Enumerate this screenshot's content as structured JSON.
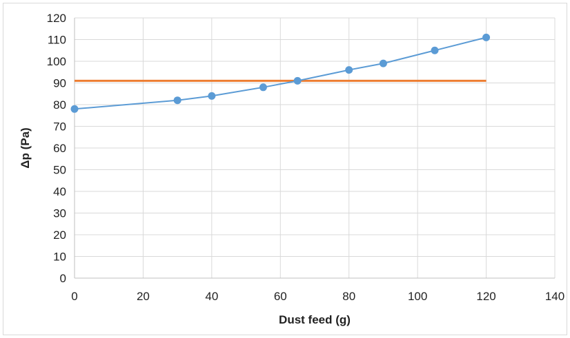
{
  "chart_data": {
    "type": "line",
    "title": "",
    "xlabel": "Dust feed (g)",
    "ylabel": "Δp (Pa)",
    "xlim": [
      0,
      140
    ],
    "ylim": [
      0,
      120
    ],
    "xticks": [
      0,
      20,
      40,
      60,
      80,
      100,
      120,
      140
    ],
    "yticks": [
      0,
      10,
      20,
      30,
      40,
      50,
      60,
      70,
      80,
      90,
      100,
      110,
      120
    ],
    "grid": true,
    "legend": "none",
    "series": [
      {
        "color": "#5b9bd5",
        "markers": true,
        "points": [
          {
            "x": 0,
            "y": 78
          },
          {
            "x": 30,
            "y": 82
          },
          {
            "x": 40,
            "y": 84
          },
          {
            "x": 55,
            "y": 88
          },
          {
            "x": 65,
            "y": 91
          },
          {
            "x": 80,
            "y": 96
          },
          {
            "x": 90,
            "y": 99
          },
          {
            "x": 105,
            "y": 105
          },
          {
            "x": 120,
            "y": 111
          }
        ]
      },
      {
        "color": "#ed7d31",
        "markers": false,
        "points": [
          {
            "x": 0,
            "y": 91
          },
          {
            "x": 120,
            "y": 91
          }
        ]
      }
    ]
  }
}
